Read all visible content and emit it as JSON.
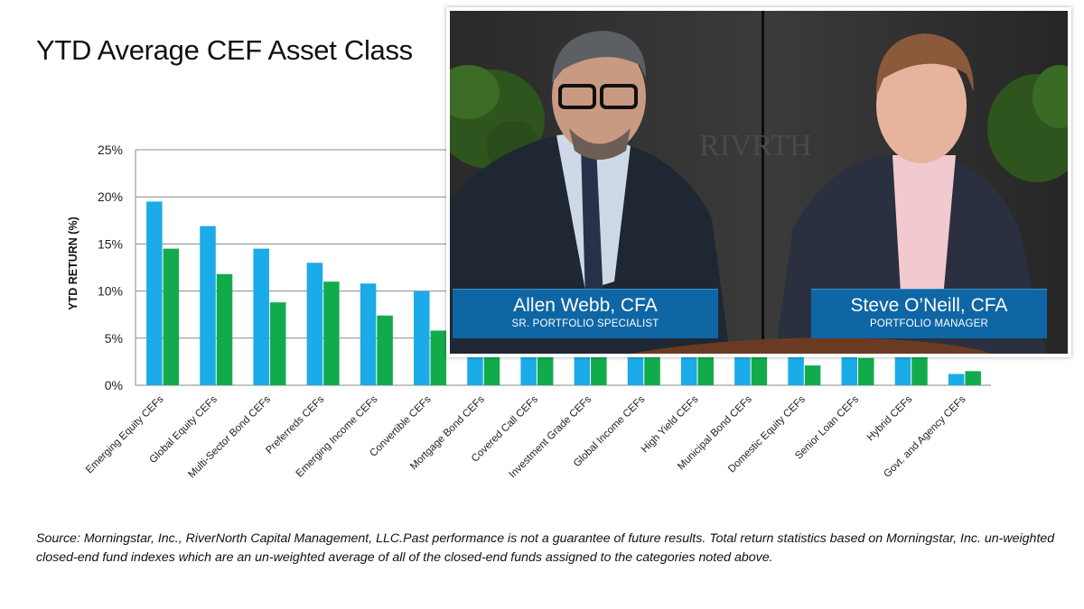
{
  "slide": {
    "title": "YTD Average CEF Asset Class",
    "source_note": "Source: Morningstar, Inc., RiverNorth Capital Management, LLC.Past performance is not a guarantee of future results. Total return statistics based on Morningstar, Inc. un-weighted closed-end fund indexes which are an un-weighted average of all of the closed-end funds assigned to the categories noted above."
  },
  "video": {
    "backdrop_text": "RIVRTH",
    "left_person": {
      "name": "Allen Webb, CFA",
      "role": "SR. PORTFOLIO SPECIALIST"
    },
    "right_person": {
      "name": "Steve O’Neill, CFA",
      "role": "PORTFOLIO MANAGER"
    },
    "nameplate_color": "#0f66a4"
  },
  "chart_data": {
    "type": "bar",
    "ylabel": "YTD RETURN (%)",
    "xlabel": "",
    "ylim": [
      0,
      25
    ],
    "yticks": [
      "0%",
      "5%",
      "10%",
      "15%",
      "20%",
      "25%"
    ],
    "ytick_values": [
      0,
      5,
      10,
      15,
      20,
      25
    ],
    "grid": true,
    "categories": [
      "Emerging Equity CEFs",
      "Global Equity CEFs",
      "Multi-Sector Bond CEFs",
      "Preferreds CEFs",
      "Emerging Income CEFs",
      "Convertible CEFs",
      "Mortgage Bond CEFs",
      "Covered Call CEFs",
      "Investment Grade CEFs",
      "Global Income CEFs",
      "High Yield CEFs",
      "Municipal Bond CEFs",
      "Domestic Equity CEFs",
      "Senior Loan CEFs",
      "Hybrid CEFs",
      "Govt. and Agency CEFs"
    ],
    "series": [
      {
        "color": "#1aabe8",
        "values": [
          19.5,
          16.9,
          14.5,
          13.0,
          10.8,
          10.0,
          6.5,
          6.0,
          5.5,
          5.2,
          5.0,
          4.8,
          4.5,
          4.0,
          3.5,
          1.2
        ]
      },
      {
        "color": "#12ab4c",
        "values": [
          14.5,
          11.8,
          8.8,
          11.0,
          7.4,
          5.8,
          5.2,
          5.0,
          4.6,
          4.4,
          4.2,
          4.0,
          2.1,
          2.9,
          3.0,
          1.5
        ]
      }
    ]
  }
}
